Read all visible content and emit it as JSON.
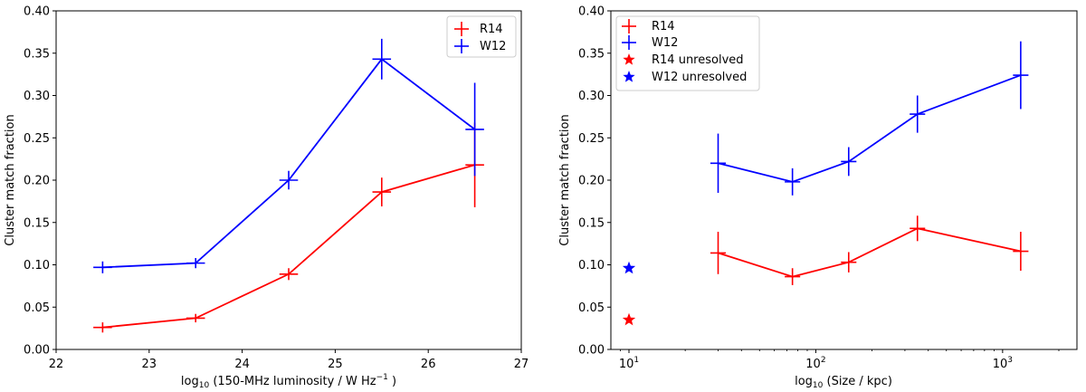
{
  "chart_data": [
    {
      "type": "line",
      "xscale": "linear",
      "xlabel_prefix": "log",
      "xlabel_sub": "10",
      "xlabel_main": " (150-MHz luminosity / W Hz",
      "xlabel_sup": "−1",
      "xlabel_suffix": " )",
      "ylabel": "Cluster match fraction",
      "xlim": [
        22,
        27
      ],
      "ylim": [
        0,
        0.4
      ],
      "xticks": [
        22,
        23,
        24,
        25,
        26,
        27
      ],
      "xtick_labels": [
        "22",
        "23",
        "24",
        "25",
        "26",
        "27"
      ],
      "yticks": [
        0,
        0.05,
        0.1,
        0.15,
        0.2,
        0.25,
        0.3,
        0.35,
        0.4
      ],
      "ytick_labels": [
        "0.00",
        "0.05",
        "0.10",
        "0.15",
        "0.20",
        "0.25",
        "0.30",
        "0.35",
        "0.40"
      ],
      "legend_loc": "top-right",
      "series": [
        {
          "name": "R14",
          "color": "#ff0000",
          "x": [
            22.5,
            23.5,
            24.5,
            25.5,
            26.5
          ],
          "y": [
            0.026,
            0.037,
            0.089,
            0.186,
            0.218
          ],
          "yerr": [
            0.006,
            0.005,
            0.007,
            0.017,
            0.05
          ],
          "xerr": [
            0.1,
            0.1,
            0.1,
            0.1,
            0.1
          ]
        },
        {
          "name": "W12",
          "color": "#0000ff",
          "x": [
            22.5,
            23.5,
            24.5,
            25.5,
            26.5
          ],
          "y": [
            0.097,
            0.102,
            0.2,
            0.343,
            0.26
          ],
          "yerr": [
            0.007,
            0.006,
            0.011,
            0.024,
            0.055
          ],
          "xerr": [
            0.1,
            0.1,
            0.1,
            0.1,
            0.1
          ]
        }
      ]
    },
    {
      "type": "line",
      "xscale": "log",
      "xlabel_prefix": "log",
      "xlabel_sub": "10",
      "xlabel_main": " (Size / kpc)",
      "ylabel": "Cluster match fraction",
      "xlim": [
        8,
        2500
      ],
      "ylim": [
        0,
        0.4
      ],
      "xticks": [
        10,
        100,
        1000
      ],
      "xtick_base": "10",
      "xtick_exps": [
        "1",
        "2",
        "3"
      ],
      "yticks": [
        0,
        0.05,
        0.1,
        0.15,
        0.2,
        0.25,
        0.3,
        0.35,
        0.4
      ],
      "ytick_labels": [
        "0.00",
        "0.05",
        "0.10",
        "0.15",
        "0.20",
        "0.25",
        "0.30",
        "0.35",
        "0.40"
      ],
      "legend_loc": "top-left",
      "series": [
        {
          "name": "R14",
          "color": "#ff0000",
          "x": [
            30,
            75,
            150,
            350,
            1250
          ],
          "y": [
            0.114,
            0.086,
            0.103,
            0.143,
            0.116
          ],
          "yerr": [
            0.025,
            0.01,
            0.012,
            0.015,
            0.023
          ],
          "xerr_frac": 0.1
        },
        {
          "name": "W12",
          "color": "#0000ff",
          "x": [
            30,
            75,
            150,
            350,
            1250
          ],
          "y": [
            0.22,
            0.198,
            0.222,
            0.278,
            0.324
          ],
          "yerr": [
            0.035,
            0.016,
            0.017,
            0.022,
            0.04
          ],
          "xerr_frac": 0.1
        }
      ],
      "markers": [
        {
          "name": "R14 unresolved",
          "color": "#ff0000",
          "x": 10,
          "y": 0.035
        },
        {
          "name": "W12 unresolved",
          "color": "#0000ff",
          "x": 10,
          "y": 0.096
        }
      ]
    }
  ]
}
